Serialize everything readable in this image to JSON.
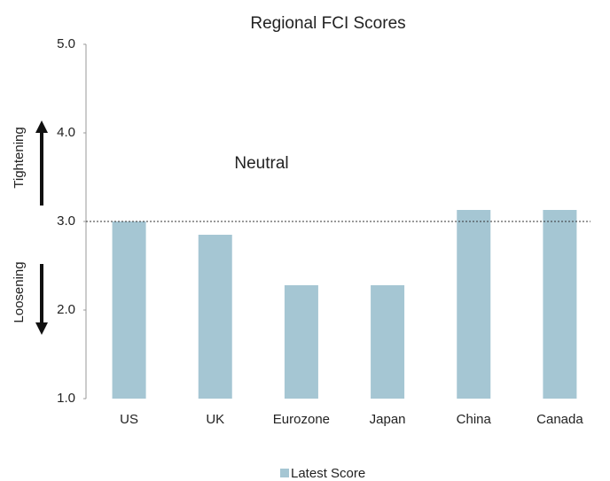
{
  "chart_data": {
    "type": "bar",
    "title": "Regional FCI Scores",
    "categories": [
      "US",
      "UK",
      "Eurozone",
      "Japan",
      "China",
      "Canada"
    ],
    "series": [
      {
        "name": "Latest Score",
        "color": "#a5c6d3",
        "values": [
          3.0,
          2.85,
          2.28,
          2.28,
          3.13,
          3.13
        ]
      }
    ],
    "ylim": [
      1,
      5
    ],
    "yticks": [
      {
        "value": 1,
        "label": "1.0"
      },
      {
        "value": 2,
        "label": "2.0"
      },
      {
        "value": 3,
        "label": "3.0"
      },
      {
        "value": 4,
        "label": "4.0"
      },
      {
        "value": 5,
        "label": "5.0"
      }
    ],
    "reference_line": {
      "value": 3,
      "label": "Neutral"
    },
    "axis_annotations": {
      "up": "Tightening",
      "down": "Loosening"
    },
    "legend": "bottom"
  }
}
